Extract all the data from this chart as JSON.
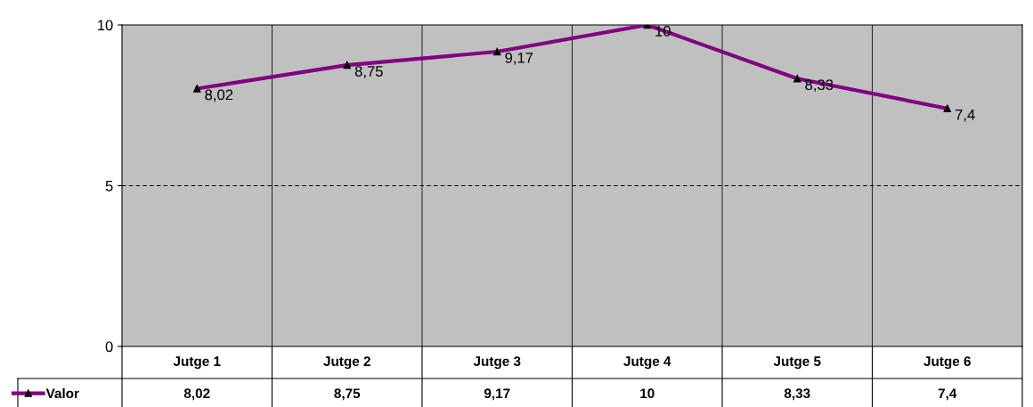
{
  "chart_data": {
    "type": "line",
    "categories": [
      "Jutge 1",
      "Jutge 2",
      "Jutge 3",
      "Jutge 4",
      "Jutge 5",
      "Jutge 6"
    ],
    "series": [
      {
        "name": "Valor",
        "color": "#800080",
        "values": [
          8.02,
          8.75,
          9.17,
          10,
          8.33,
          7.4
        ],
        "value_labels": [
          "8,02",
          "8,75",
          "9,17",
          "10",
          "8,33",
          "7,4"
        ]
      }
    ],
    "ylim": [
      0,
      10
    ],
    "yticks": [
      0,
      5,
      10
    ],
    "ref_lines": [
      {
        "axis": "y",
        "value": 5,
        "color": "#000000",
        "line_style": "dashed"
      }
    ],
    "marker": "triangle",
    "line_style": "solid",
    "legend": "bottom left"
  }
}
